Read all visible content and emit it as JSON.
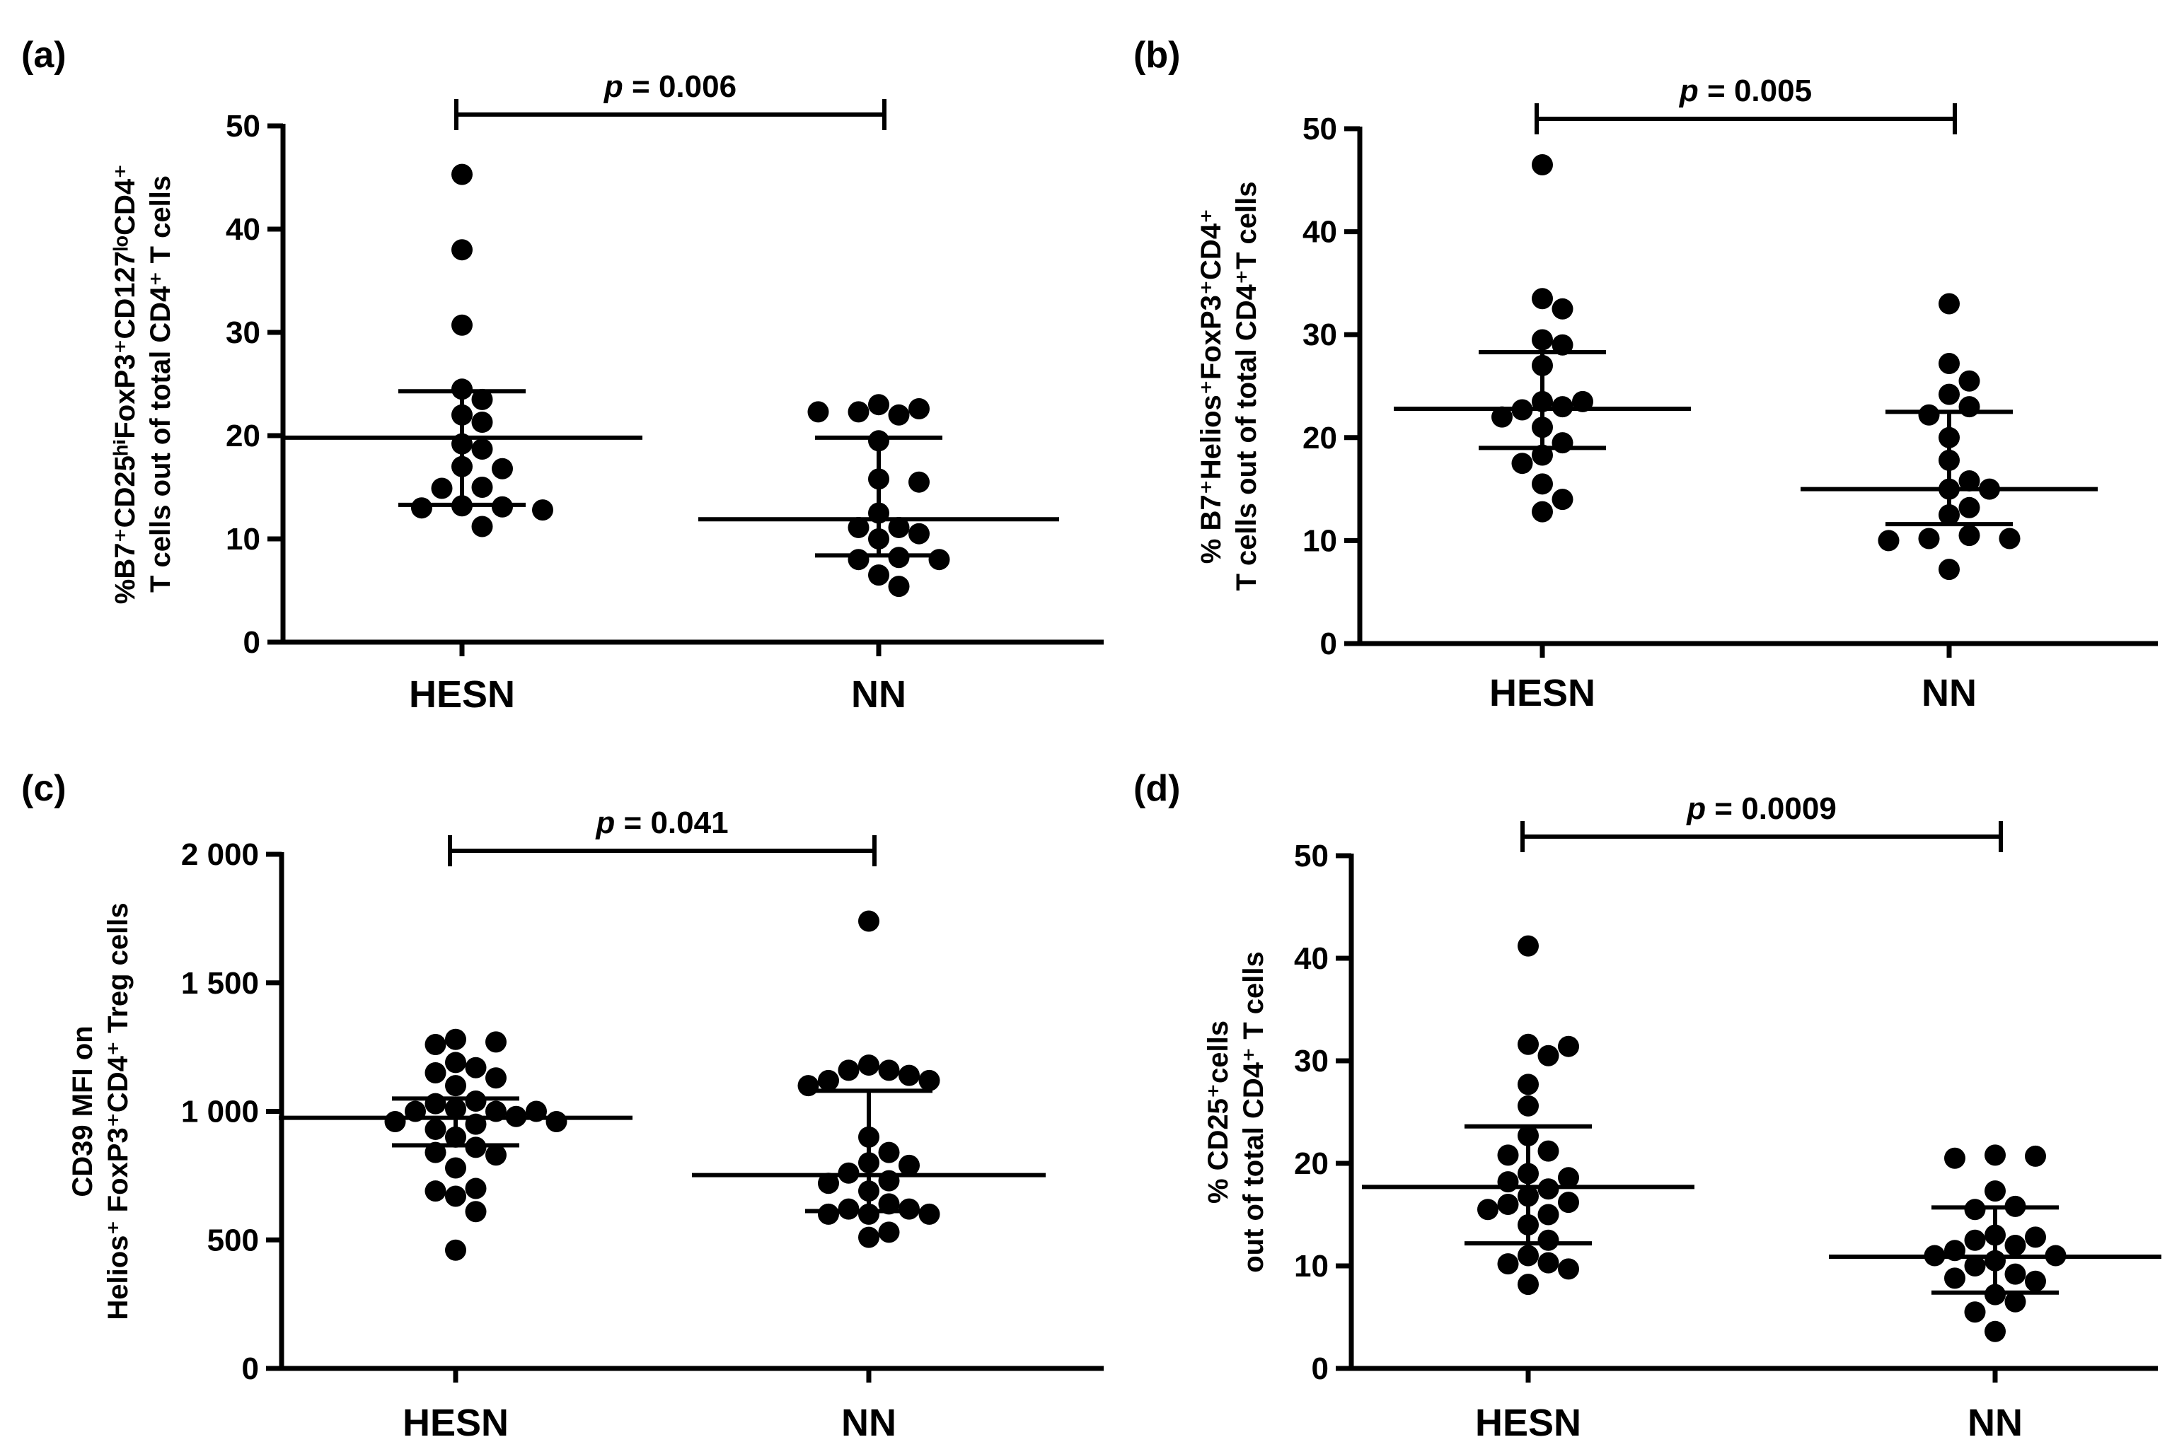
{
  "chart_data": [
    {
      "type": "scatter",
      "panel": "(a)",
      "ylabel_line1": "%B7⁺CD25ʰⁱFoxP3⁺CD127ˡᵒCD4⁺",
      "ylabel_line2": "T cells out of total CD4⁺ T cells",
      "categories": [
        "HESN",
        "NN"
      ],
      "ylim": [
        0,
        50
      ],
      "yticks": [
        0,
        10,
        20,
        30,
        40,
        50
      ],
      "ytick_labels": [
        "0",
        "10",
        "20",
        "30",
        "40",
        "50"
      ],
      "p_label": "p",
      "p_value": "= 0.006",
      "series": [
        {
          "name": "HESN",
          "values": [
            45.3,
            38,
            30.7,
            24.5,
            23.5,
            22,
            21.3,
            19.2,
            18.7,
            17,
            16.8,
            15,
            14.9,
            13.2,
            13.1,
            13,
            12.8,
            11.2
          ],
          "median": 19.8,
          "q1": 13.3,
          "q3": 24.3
        },
        {
          "name": "NN",
          "values": [
            23,
            22.6,
            22.3,
            22.3,
            22,
            19.5,
            15.8,
            15.5,
            12.5,
            11.1,
            11.1,
            10.5,
            10,
            8.2,
            8,
            8,
            6.5,
            5.4
          ],
          "median": 11.9,
          "q1": 8.4,
          "q3": 19.8
        }
      ]
    },
    {
      "type": "scatter",
      "panel": "(b)",
      "ylabel_line1": "% B7⁺Helios⁺FoxP3⁺CD4⁺",
      "ylabel_line2": "T cells out of total CD4⁺T cells",
      "categories": [
        "HESN",
        "NN"
      ],
      "ylim": [
        0,
        50
      ],
      "yticks": [
        0,
        10,
        20,
        30,
        40,
        50
      ],
      "ytick_labels": [
        "0",
        "10",
        "20",
        "30",
        "40",
        "50"
      ],
      "p_label": "p",
      "p_value": "= 0.005",
      "series": [
        {
          "name": "HESN",
          "values": [
            46.5,
            33.5,
            32.5,
            29.5,
            29,
            27,
            23.5,
            23,
            23.5,
            22.7,
            22,
            21,
            19.5,
            18.3,
            17.5,
            15.5,
            14,
            12.8
          ],
          "median": 22.8,
          "q1": 19,
          "q3": 28.3
        },
        {
          "name": "NN",
          "values": [
            33,
            27.2,
            25.5,
            24.2,
            23,
            22.2,
            20,
            17.8,
            15.8,
            15,
            15,
            13.2,
            12.5,
            10.5,
            10.2,
            10.2,
            10,
            7.2
          ],
          "median": 15,
          "q1": 11.6,
          "q3": 22.5
        }
      ]
    },
    {
      "type": "scatter",
      "panel": "(c)",
      "ylabel_line1": "CD39  MFI on",
      "ylabel_line2": "Helios⁺ FoxP3⁺CD4⁺  Treg cells",
      "categories": [
        "HESN",
        "NN"
      ],
      "ylim": [
        0,
        2000
      ],
      "yticks": [
        0,
        500,
        1000,
        1500,
        2000
      ],
      "ytick_labels": [
        "0",
        "500",
        "1 000",
        "1 500",
        "2 000"
      ],
      "p_label": "p",
      "p_value": "= 0.041",
      "series": [
        {
          "name": "HESN",
          "values": [
            1270,
            1260,
            1280,
            1190,
            1170,
            1150,
            1130,
            1100,
            1000,
            1000,
            1000,
            1010,
            980,
            1040,
            1030,
            960,
            960,
            950,
            930,
            900,
            860,
            840,
            830,
            780,
            700,
            670,
            690,
            610,
            460
          ],
          "median": 975,
          "q1": 868,
          "q3": 1050
        },
        {
          "name": "NN",
          "values": [
            1740,
            1180,
            1160,
            1140,
            1120,
            1120,
            1100,
            1160,
            900,
            840,
            800,
            790,
            760,
            730,
            720,
            690,
            640,
            620,
            620,
            600,
            600,
            600,
            530,
            510
          ],
          "median": 752,
          "q1": 612,
          "q3": 1080
        }
      ]
    },
    {
      "type": "scatter",
      "panel": "(d)",
      "ylabel_line1": "% CD25⁺cells",
      "ylabel_line2": "out of total CD4⁺ T cells",
      "categories": [
        "HESN",
        "NN"
      ],
      "ylim": [
        0,
        50
      ],
      "yticks": [
        0,
        10,
        20,
        30,
        40,
        50
      ],
      "ytick_labels": [
        "0",
        "10",
        "20",
        "30",
        "40",
        "50"
      ],
      "p_label": "p",
      "p_value": "= 0.0009",
      "series": [
        {
          "name": "HESN",
          "values": [
            41.2,
            31.4,
            31.6,
            30.5,
            27.7,
            25.6,
            22.7,
            21.2,
            20.8,
            19,
            18.6,
            18.2,
            17.5,
            16.8,
            16.2,
            16,
            15.5,
            15,
            14,
            12.5,
            11,
            10.3,
            10.2,
            9.7,
            8.2
          ],
          "median": 17.7,
          "q1": 12.2,
          "q3": 23.6
        },
        {
          "name": "NN",
          "values": [
            20.8,
            20.7,
            20.5,
            17.3,
            15.8,
            15.5,
            13,
            12.8,
            12.5,
            12,
            11.5,
            11,
            11,
            10.5,
            10,
            9.2,
            8.8,
            8.5,
            7.2,
            6.5,
            5.5,
            3.6
          ],
          "median": 10.9,
          "q1": 7.4,
          "q3": 15.7
        }
      ]
    }
  ]
}
